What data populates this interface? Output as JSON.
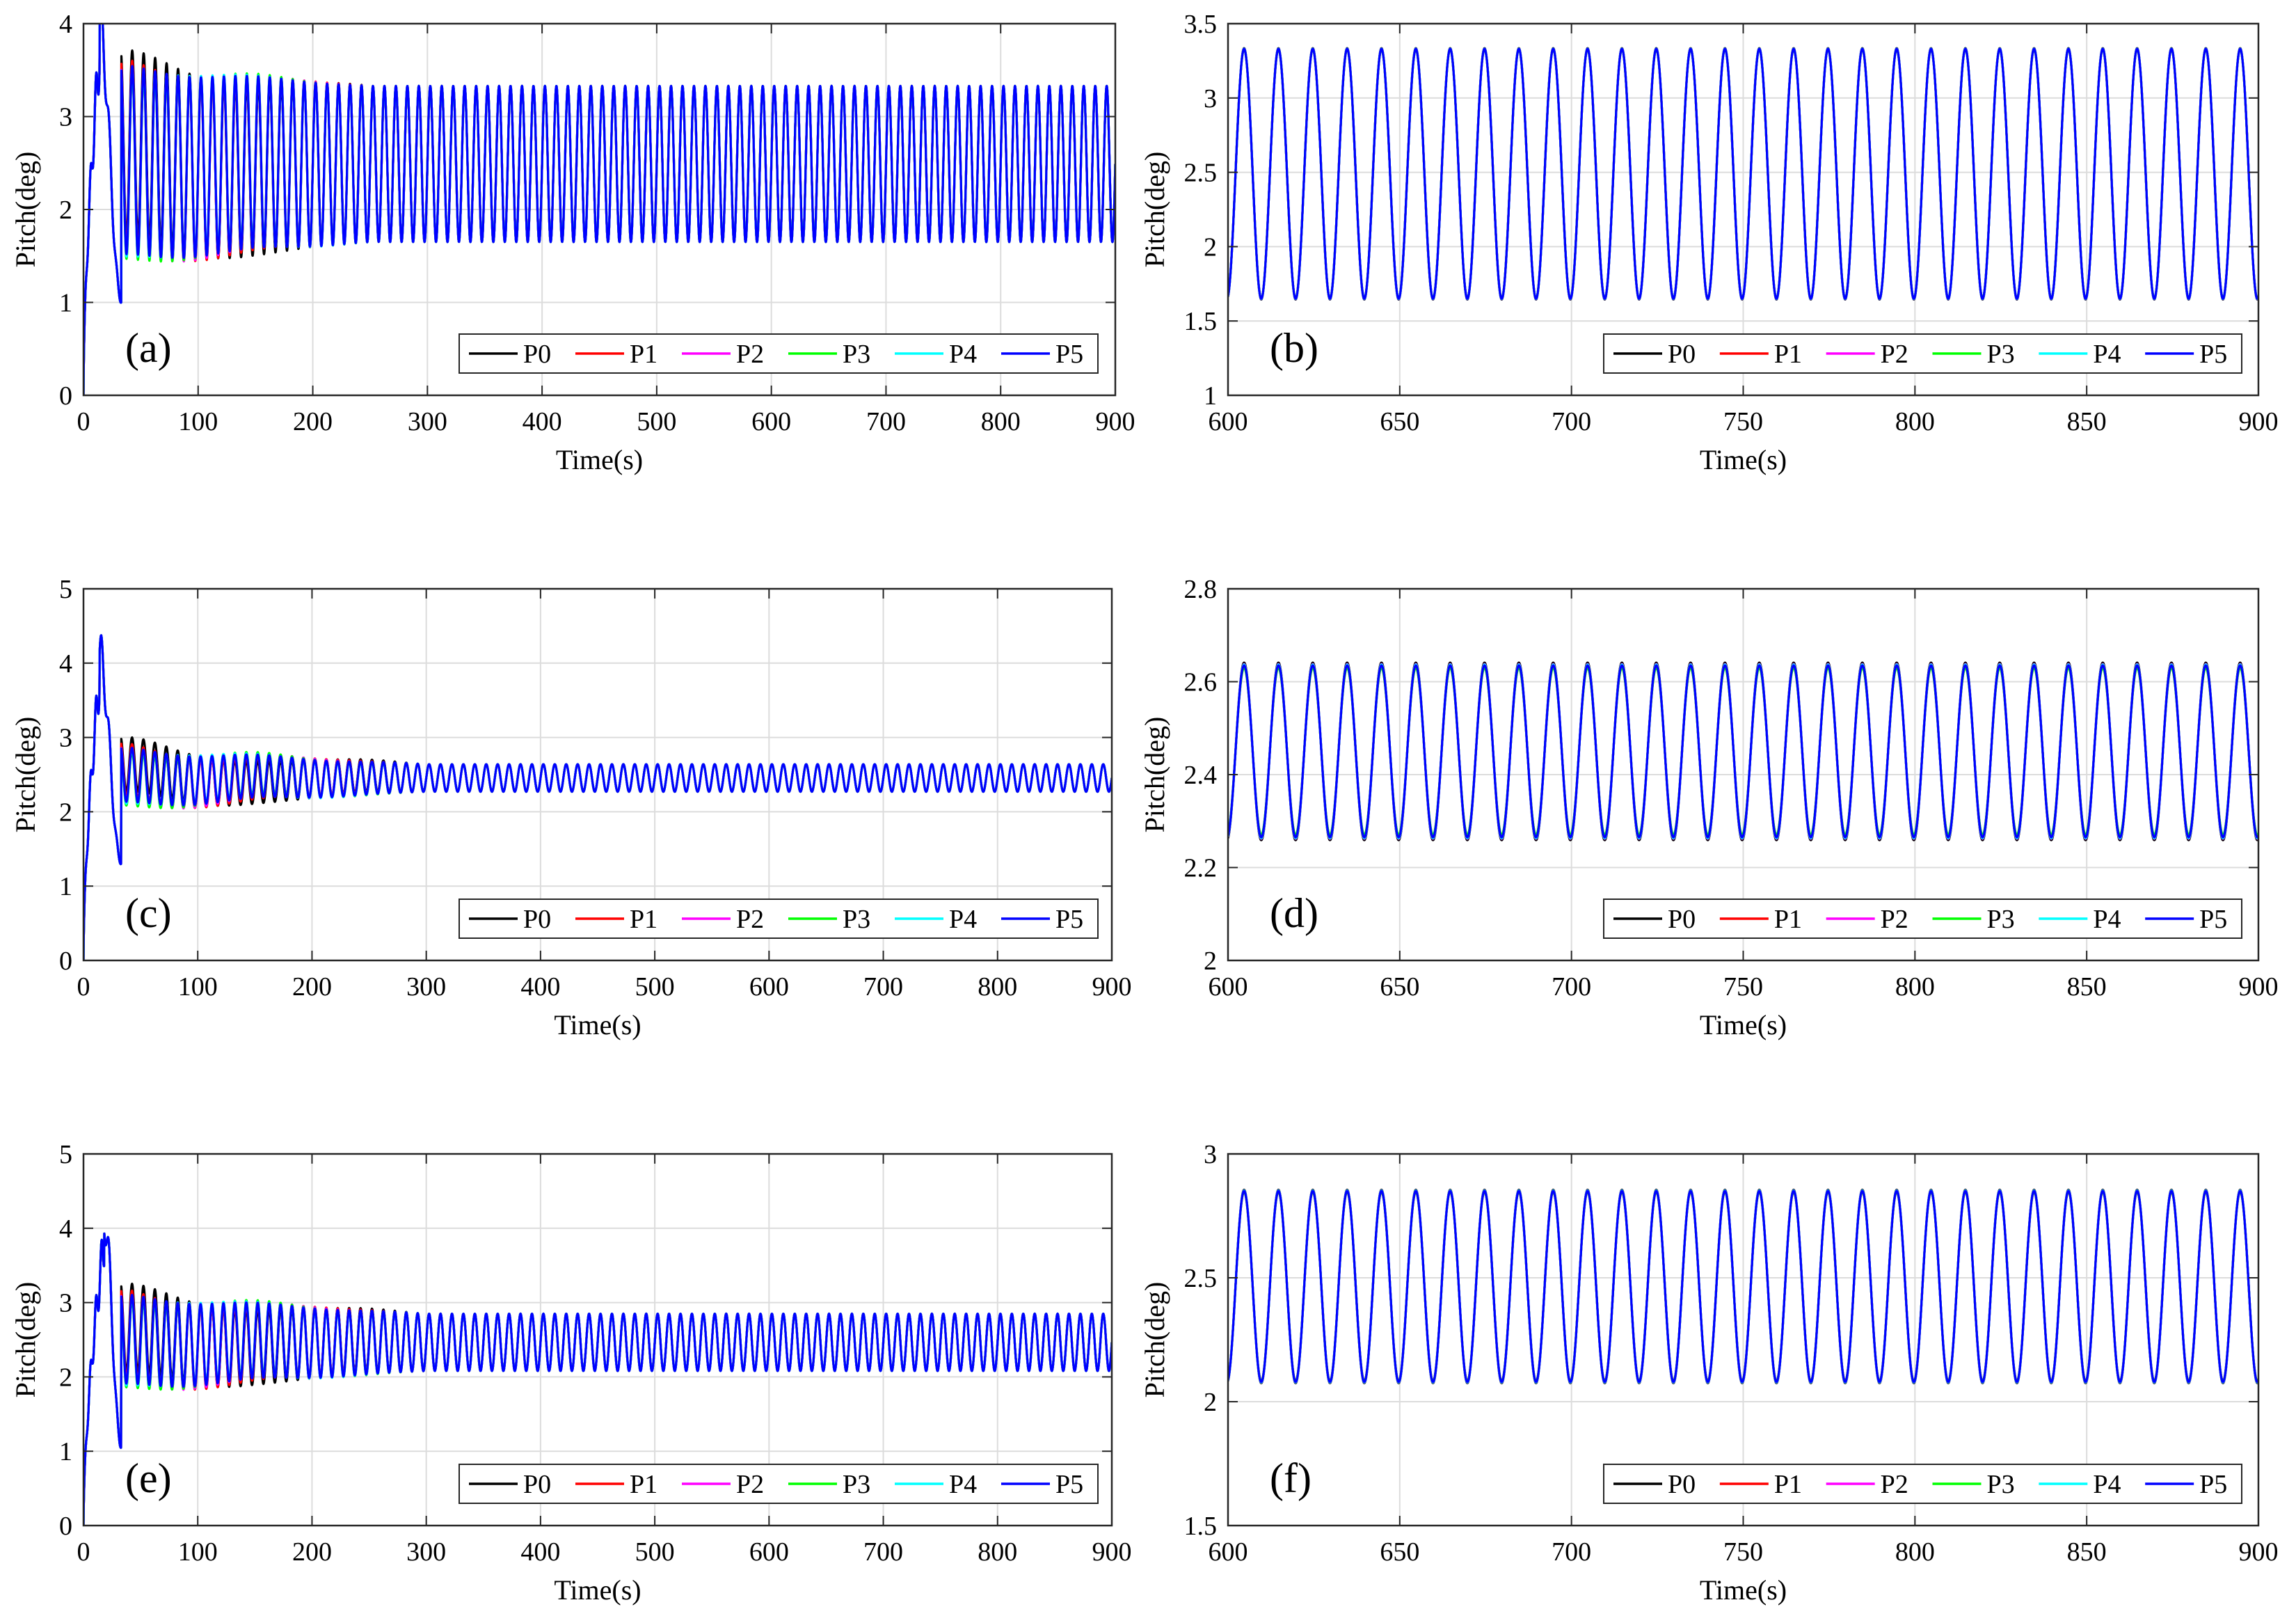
{
  "legend": {
    "entries": [
      "P0",
      "P1",
      "P2",
      "P3",
      "P4",
      "P5"
    ],
    "colors": [
      "#000000",
      "#ff0000",
      "#ff00ff",
      "#00ff00",
      "#00ffff",
      "#0000ff"
    ]
  },
  "chart_data": [
    {
      "panel": "(a)",
      "type": "line",
      "xlabel": "Time(s)",
      "ylabel": "Pitch(deg)",
      "xlim": [
        0,
        900
      ],
      "ylim": [
        0,
        4
      ],
      "xticks": [
        0,
        100,
        200,
        300,
        400,
        500,
        600,
        700,
        800,
        900
      ],
      "yticks": [
        0,
        1,
        2,
        3,
        4
      ],
      "ytick_labels": [
        "0",
        "1",
        "2",
        "3",
        "4"
      ],
      "grid": true,
      "legend_position": "bottom-right",
      "series_model": {
        "t_ss": 250,
        "period_s": 10,
        "steady_min": 1.65,
        "steady_max": 3.33,
        "peak": 4.0,
        "peak_t": 14,
        "dip": 1.0,
        "dip_t": 33,
        "transient_amp": 1.1
      },
      "series": [
        {
          "name": "P0",
          "color": "#000000",
          "transient_delta": 0.18
        },
        {
          "name": "P1",
          "color": "#ff0000",
          "transient_delta": 0.08
        },
        {
          "name": "P2",
          "color": "#ff00ff",
          "transient_delta": 0.05
        },
        {
          "name": "P3",
          "color": "#00ff00",
          "transient_delta": 0.06
        },
        {
          "name": "P4",
          "color": "#00ffff",
          "transient_delta": 0.03
        },
        {
          "name": "P5",
          "color": "#0000ff",
          "transient_delta": 0.0
        }
      ]
    },
    {
      "panel": "(b)",
      "type": "line",
      "xlabel": "Time(s)",
      "ylabel": "Pitch(deg)",
      "xlim": [
        600,
        900
      ],
      "ylim": [
        1,
        3.5
      ],
      "xticks": [
        600,
        650,
        700,
        750,
        800,
        850,
        900
      ],
      "yticks": [
        1,
        1.5,
        2,
        2.5,
        3,
        3.5
      ],
      "ytick_labels": [
        "1",
        "1.5",
        "2",
        "2.5",
        "3",
        "3.5"
      ],
      "grid": true,
      "legend_position": "bottom-right",
      "series_model": {
        "period_s": 10,
        "steady_min": 1.65,
        "steady_max": 3.33
      },
      "series": [
        {
          "name": "P0",
          "color": "#000000",
          "transient_delta": 0.01
        },
        {
          "name": "P1",
          "color": "#ff0000",
          "transient_delta": 0.005
        },
        {
          "name": "P2",
          "color": "#ff00ff",
          "transient_delta": 0.004
        },
        {
          "name": "P3",
          "color": "#00ff00",
          "transient_delta": 0.004
        },
        {
          "name": "P4",
          "color": "#00ffff",
          "transient_delta": 0.003
        },
        {
          "name": "P5",
          "color": "#0000ff",
          "transient_delta": 0.0
        }
      ]
    },
    {
      "panel": "(c)",
      "type": "line",
      "xlabel": "Time(s)",
      "ylabel": "Pitch(deg)",
      "xlim": [
        0,
        900
      ],
      "ylim": [
        0,
        5
      ],
      "xticks": [
        0,
        100,
        200,
        300,
        400,
        500,
        600,
        700,
        800,
        900
      ],
      "yticks": [
        0,
        1,
        2,
        3,
        4,
        5
      ],
      "ytick_labels": [
        "0",
        "1",
        "2",
        "3",
        "4",
        "5"
      ],
      "grid": true,
      "legend_position": "bottom-right",
      "series_model": {
        "t_ss": 300,
        "period_s": 10,
        "steady_min": 2.27,
        "steady_max": 2.64,
        "peak": 4.1,
        "peak_t": 14,
        "dip": 1.3,
        "dip_t": 33,
        "transient_amp": 0.45
      },
      "series": [
        {
          "name": "P0",
          "color": "#000000",
          "transient_delta": 0.15
        },
        {
          "name": "P1",
          "color": "#ff0000",
          "transient_delta": 0.07
        },
        {
          "name": "P2",
          "color": "#ff00ff",
          "transient_delta": 0.05
        },
        {
          "name": "P3",
          "color": "#00ff00",
          "transient_delta": 0.06
        },
        {
          "name": "P4",
          "color": "#00ffff",
          "transient_delta": 0.03
        },
        {
          "name": "P5",
          "color": "#0000ff",
          "transient_delta": 0.0
        }
      ]
    },
    {
      "panel": "(d)",
      "type": "line",
      "xlabel": "Time(s)",
      "ylabel": "Pitch(deg)",
      "xlim": [
        600,
        900
      ],
      "ylim": [
        2,
        2.8
      ],
      "xticks": [
        600,
        650,
        700,
        750,
        800,
        850,
        900
      ],
      "yticks": [
        2,
        2.2,
        2.4,
        2.6,
        2.8
      ],
      "ytick_labels": [
        "2",
        "2.2",
        "2.4",
        "2.6",
        "2.8"
      ],
      "grid": true,
      "legend_position": "bottom-right",
      "series_model": {
        "period_s": 10,
        "steady_min": 2.265,
        "steady_max": 2.635
      },
      "series": [
        {
          "name": "P0",
          "color": "#000000",
          "transient_delta": 0.012
        },
        {
          "name": "P1",
          "color": "#ff0000",
          "transient_delta": 0.008
        },
        {
          "name": "P2",
          "color": "#ff00ff",
          "transient_delta": 0.006
        },
        {
          "name": "P3",
          "color": "#00ff00",
          "transient_delta": 0.01
        },
        {
          "name": "P4",
          "color": "#00ffff",
          "transient_delta": 0.004
        },
        {
          "name": "P5",
          "color": "#0000ff",
          "transient_delta": 0.0
        }
      ]
    },
    {
      "panel": "(e)",
      "type": "line",
      "xlabel": "Time(s)",
      "ylabel": "Pitch(deg)",
      "xlim": [
        0,
        900
      ],
      "ylim": [
        0,
        5
      ],
      "xticks": [
        0,
        100,
        200,
        300,
        400,
        500,
        600,
        700,
        800,
        900
      ],
      "yticks": [
        0,
        1,
        2,
        3,
        4,
        5
      ],
      "ytick_labels": [
        "0",
        "1",
        "2",
        "3",
        "4",
        "5"
      ],
      "grid": true,
      "legend_position": "bottom-right",
      "series_model": {
        "t_ss": 300,
        "period_s": 10,
        "steady_min": 2.08,
        "steady_max": 2.85,
        "peak": 4.15,
        "peak_t": 18,
        "dip": 1.05,
        "dip_t": 33,
        "transient_amp": 0.7
      },
      "series": [
        {
          "name": "P0",
          "color": "#000000",
          "transient_delta": 0.16
        },
        {
          "name": "P1",
          "color": "#ff0000",
          "transient_delta": 0.08
        },
        {
          "name": "P2",
          "color": "#ff00ff",
          "transient_delta": 0.05
        },
        {
          "name": "P3",
          "color": "#00ff00",
          "transient_delta": 0.06
        },
        {
          "name": "P4",
          "color": "#00ffff",
          "transient_delta": 0.03
        },
        {
          "name": "P5",
          "color": "#0000ff",
          "transient_delta": 0.0
        }
      ]
    },
    {
      "panel": "(f)",
      "type": "line",
      "xlabel": "Time(s)",
      "ylabel": "Pitch(deg)",
      "xlim": [
        600,
        900
      ],
      "ylim": [
        1.5,
        3
      ],
      "xticks": [
        600,
        650,
        700,
        750,
        800,
        850,
        900
      ],
      "yticks": [
        1.5,
        2,
        2.5,
        3
      ],
      "ytick_labels": [
        "1.5",
        "2",
        "2.5",
        "3"
      ],
      "grid": true,
      "legend_position": "bottom-right",
      "series_model": {
        "period_s": 10,
        "steady_min": 2.08,
        "steady_max": 2.85
      },
      "series": [
        {
          "name": "P0",
          "color": "#000000",
          "transient_delta": 0.01
        },
        {
          "name": "P1",
          "color": "#ff0000",
          "transient_delta": 0.007
        },
        {
          "name": "P2",
          "color": "#ff00ff",
          "transient_delta": 0.005
        },
        {
          "name": "P3",
          "color": "#00ff00",
          "transient_delta": 0.005
        },
        {
          "name": "P4",
          "color": "#00ffff",
          "transient_delta": 0.004
        },
        {
          "name": "P5",
          "color": "#0000ff",
          "transient_delta": 0.0
        }
      ]
    }
  ]
}
